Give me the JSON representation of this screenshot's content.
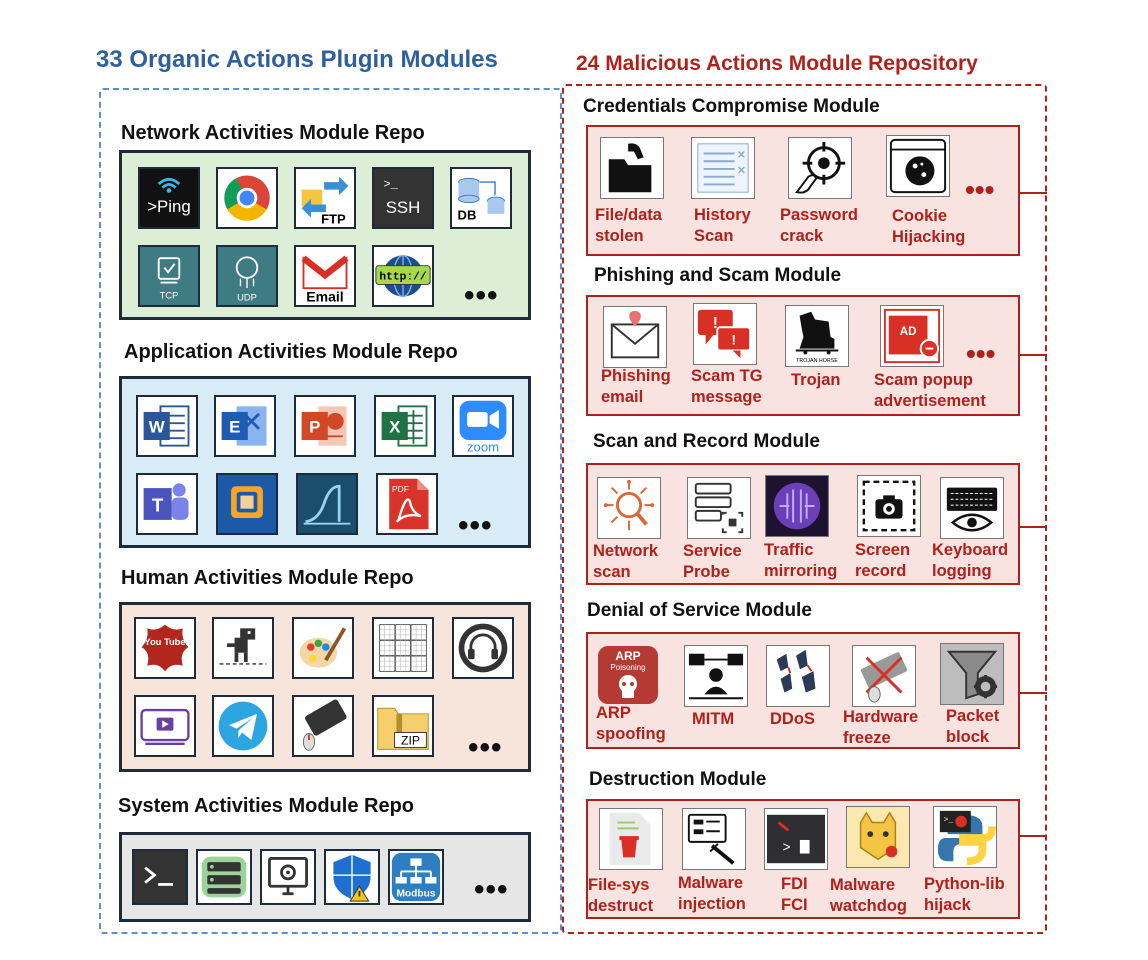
{
  "organic": {
    "title": "33 Organic Actions Plugin Modules",
    "repos": {
      "network": {
        "title": "Network Activities Module Repo",
        "bg": "#dcefd6",
        "icons": [
          "ping-icon",
          "chrome-icon",
          "ftp-icon",
          "ssh-icon",
          "database-icon",
          "tcp-icon",
          "udp-icon",
          "email-icon",
          "http-icon"
        ],
        "icon_labels": {
          "ping": ">Ping",
          "ftp": "FTP",
          "ssh": "SSH",
          "db": "DB",
          "tcp": "TCP",
          "udp": "UDP",
          "email": "Email",
          "http": "http://"
        },
        "more": "•••"
      },
      "application": {
        "title": "Application Activities Module Repo",
        "bg": "#d8ecf7",
        "icons": [
          "word-icon",
          "exchange-icon",
          "powerpoint-icon",
          "excel-icon",
          "zoom-icon",
          "teams-icon",
          "vmware-icon",
          "wireshark-icon",
          "pdf-icon"
        ],
        "icon_labels": {
          "zoom": "zoom",
          "pdf": "PDF"
        },
        "more": "•••"
      },
      "human": {
        "title": "Human Activities Module Repo",
        "bg": "#f7e4da",
        "icons": [
          "youtube-icon",
          "dino-game-icon",
          "paint-icon",
          "sudoku-icon",
          "headphones-icon",
          "video-player-icon",
          "telegram-icon",
          "keyboard-mouse-icon",
          "zip-folder-icon"
        ],
        "icon_labels": {
          "youtube": "You Tube",
          "zip": "ZIP"
        },
        "more": "•••"
      },
      "system": {
        "title": "System Activities Module Repo",
        "bg": "#e6e6e6",
        "icons": [
          "terminal-icon",
          "server-icon",
          "settings-monitor-icon",
          "security-shield-icon",
          "modbus-icon"
        ],
        "icon_labels": {
          "modbus": "Modbus"
        },
        "more": "•••"
      }
    }
  },
  "malicious": {
    "title": "24 Malicious Actions Module Repository",
    "modules": {
      "credentials": {
        "title": "Credentials Compromise Module",
        "items": [
          {
            "line1": "File/data",
            "line2": "stolen",
            "icon": "file-stolen-icon"
          },
          {
            "line1": "History",
            "line2": "Scan",
            "icon": "history-scan-icon"
          },
          {
            "line1": "Password",
            "line2": "crack",
            "icon": "password-crack-icon"
          },
          {
            "line1": "Cookie",
            "line2": "Hijacking",
            "icon": "cookie-icon"
          }
        ],
        "more": "•••"
      },
      "phishing": {
        "title": "Phishing and Scam Module",
        "items": [
          {
            "line1": "Phishing",
            "line2": "email",
            "icon": "phishing-email-icon"
          },
          {
            "line1": "Scam TG",
            "line2": "message",
            "icon": "scam-message-icon"
          },
          {
            "line1": "Trojan",
            "line2": "",
            "icon": "trojan-horse-icon"
          },
          {
            "line1": "Scam popup",
            "line2": "advertisement",
            "icon": "popup-ad-icon"
          }
        ],
        "icon_labels": {
          "trojan": "TROJAN HORSE",
          "ad": "AD"
        },
        "more": "•••"
      },
      "scan": {
        "title": "Scan and Record Module",
        "items": [
          {
            "line1": "Network",
            "line2": "scan",
            "icon": "network-scan-icon"
          },
          {
            "line1": "Service",
            "line2": "Probe",
            "icon": "service-probe-icon"
          },
          {
            "line1": "Traffic",
            "line2": "mirroring",
            "icon": "traffic-mirroring-icon"
          },
          {
            "line1": "Screen",
            "line2": "record",
            "icon": "screen-record-icon"
          },
          {
            "line1": "Keyboard",
            "line2": "logging",
            "icon": "keylogger-icon"
          }
        ]
      },
      "dos": {
        "title": "Denial of Service Module",
        "items": [
          {
            "line1": "ARP",
            "line2": "spoofing",
            "icon": "arp-poisoning-icon"
          },
          {
            "line1": "MITM",
            "line2": "",
            "icon": "mitm-icon"
          },
          {
            "line1": "DDoS",
            "line2": "",
            "icon": "ddos-icon"
          },
          {
            "line1": "Hardware",
            "line2": "freeze",
            "icon": "hardware-freeze-icon"
          },
          {
            "line1": "Packet",
            "line2": "block",
            "icon": "packet-block-icon"
          }
        ],
        "icon_labels": {
          "arp": "ARP",
          "poisoning": "Poisoning"
        }
      },
      "destruction": {
        "title": "Destruction Module",
        "items": [
          {
            "line1": "File-sys",
            "line2": "destruct",
            "icon": "file-delete-icon"
          },
          {
            "line1": "Malware",
            "line2": "injection",
            "icon": "malware-injection-icon"
          },
          {
            "line1": "FDI",
            "line2": "FCI",
            "icon": "fdi-terminal-icon"
          },
          {
            "line1": "Malware",
            "line2": "watchdog",
            "icon": "watchdog-icon"
          },
          {
            "line1": "Python-lib",
            "line2": "hijack",
            "icon": "python-hijack-icon"
          }
        ]
      }
    }
  },
  "colors": {
    "organic_accent": "#2e5f9e",
    "malicious_accent": "#b0211b",
    "module_fill": "#f8e3e0"
  }
}
